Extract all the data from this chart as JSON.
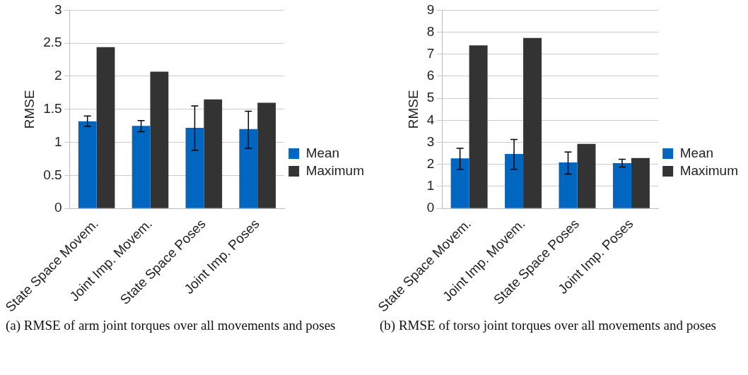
{
  "chart_data": [
    {
      "type": "bar",
      "ylabel": "RMSE",
      "categories": [
        "State Space Movem.",
        "Joint Imp. Movem.",
        "State Space Poses",
        "Joint Imp. Poses"
      ],
      "series": [
        {
          "name": "Mean",
          "color": "#0066bf",
          "values": [
            1.32,
            1.25,
            1.22,
            1.2
          ],
          "errors": [
            [
              1.24,
              1.4
            ],
            [
              1.16,
              1.33
            ],
            [
              0.88,
              1.55
            ],
            [
              0.91,
              1.47
            ]
          ]
        },
        {
          "name": "Maximum",
          "color": "#333333",
          "values": [
            2.44,
            2.07,
            1.65,
            1.6
          ]
        }
      ],
      "ylim": [
        0,
        3
      ],
      "yticks": [
        0,
        0.5,
        1,
        1.5,
        2,
        2.5,
        3
      ],
      "grid": "y",
      "legend": "right",
      "annotations": [
        "(a) RMSE of arm joint torques over all movements and poses"
      ]
    },
    {
      "type": "bar",
      "ylabel": "RMSE",
      "categories": [
        "State Space Movem.",
        "Joint Imp. Movem.",
        "State Space Poses",
        "Joint Imp. Poses"
      ],
      "series": [
        {
          "name": "Mean",
          "color": "#0066bf",
          "values": [
            2.27,
            2.47,
            2.09,
            2.06
          ],
          "errors": [
            [
              1.78,
              2.73
            ],
            [
              1.78,
              3.13
            ],
            [
              1.56,
              2.56
            ],
            [
              1.88,
              2.23
            ]
          ]
        },
        {
          "name": "Maximum",
          "color": "#333333",
          "values": [
            7.4,
            7.74,
            2.93,
            2.29
          ]
        }
      ],
      "ylim": [
        0,
        9
      ],
      "yticks": [
        0,
        1,
        2,
        3,
        4,
        5,
        6,
        7,
        8,
        9
      ],
      "grid": "y",
      "legend": "right",
      "annotations": [
        "(b) RMSE of torso joint torques over all movements and poses"
      ]
    }
  ]
}
